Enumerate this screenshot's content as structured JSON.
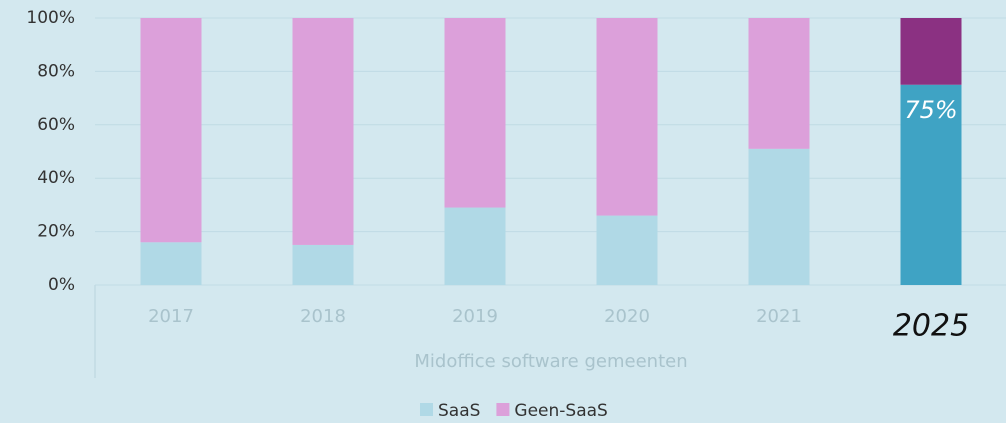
{
  "chart_data": {
    "type": "stacked_bar_100",
    "categories": [
      "2017",
      "2018",
      "2019",
      "2020",
      "2021",
      "2025"
    ],
    "series": [
      {
        "name": "SaaS",
        "color": "#b0d9e6",
        "point_colors": [
          "#b0d9e6",
          "#b0d9e6",
          "#b0d9e6",
          "#b0d9e6",
          "#b0d9e6",
          "#3fa3c4"
        ],
        "values": [
          16,
          15,
          29,
          26,
          51,
          75
        ],
        "value_labels": [
          null,
          null,
          null,
          null,
          null,
          "75%"
        ]
      },
      {
        "name": "Geen-SaaS",
        "color": "#dca0da",
        "point_colors": [
          "#dca0da",
          "#dca0da",
          "#dca0da",
          "#dca0da",
          "#dca0da",
          "#8b3182"
        ],
        "values": [
          84,
          85,
          71,
          74,
          49,
          25
        ]
      }
    ],
    "x_label": "Midoffice software gemeenten",
    "ylim": [
      0,
      100
    ],
    "yticks": [
      {
        "value": 0,
        "label": "0%"
      },
      {
        "value": 20,
        "label": "20%"
      },
      {
        "value": 40,
        "label": "40%"
      },
      {
        "value": 60,
        "label": "60%"
      },
      {
        "value": 80,
        "label": "80%"
      },
      {
        "value": 100,
        "label": "100%"
      }
    ],
    "grid": true,
    "legend": "bottom"
  }
}
